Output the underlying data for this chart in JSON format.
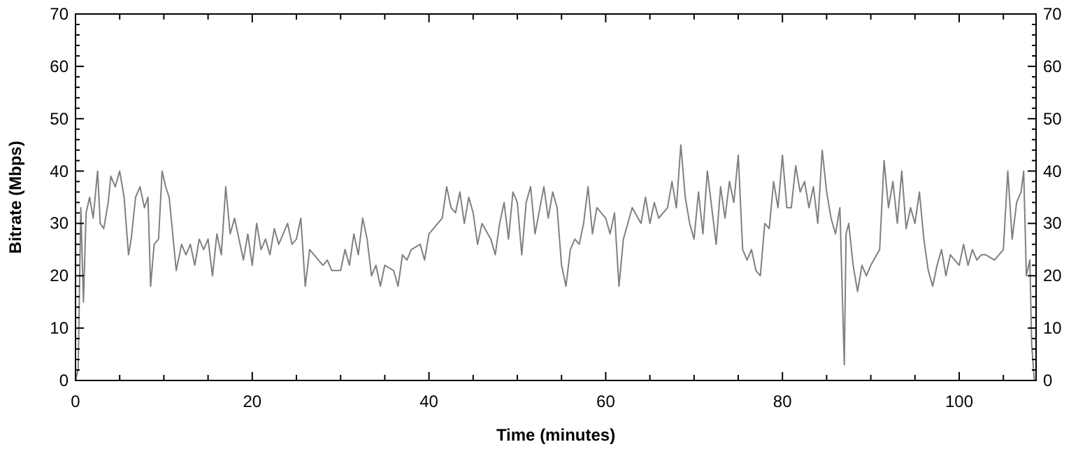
{
  "chart_data": {
    "type": "line",
    "xlabel": "Time (minutes)",
    "ylabel": "Bitrate (Mbps)",
    "xlim": [
      0,
      108.7
    ],
    "ylim": [
      0,
      70
    ],
    "xticks": [
      0,
      {
        "value": 5,
        "label": null
      },
      20,
      {
        "value": 10,
        "label": null
      },
      {
        "value": 15,
        "label": null
      },
      {
        "value": 25,
        "label": null
      },
      {
        "value": 30,
        "label": null
      },
      {
        "value": 35,
        "label": null
      },
      40,
      {
        "value": 45,
        "label": null
      },
      {
        "value": 50,
        "label": null
      },
      {
        "value": 55,
        "label": null
      },
      60,
      {
        "value": 65,
        "label": null
      },
      {
        "value": 70,
        "label": null
      },
      {
        "value": 75,
        "label": null
      },
      80,
      {
        "value": 85,
        "label": null
      },
      {
        "value": 90,
        "label": null
      },
      {
        "value": 95,
        "label": null
      },
      100,
      {
        "value": 105,
        "label": null
      }
    ],
    "yticks": [
      0,
      {
        "value": 2,
        "label": null
      },
      {
        "value": 4,
        "label": null
      },
      {
        "value": 6,
        "label": null
      },
      {
        "value": 8,
        "label": null
      },
      10,
      {
        "value": 12,
        "label": null
      },
      {
        "value": 14,
        "label": null
      },
      {
        "value": 16,
        "label": null
      },
      {
        "value": 18,
        "label": null
      },
      20,
      {
        "value": 22,
        "label": null
      },
      {
        "value": 24,
        "label": null
      },
      {
        "value": 26,
        "label": null
      },
      {
        "value": 28,
        "label": null
      },
      30,
      {
        "value": 32,
        "label": null
      },
      {
        "value": 34,
        "label": null
      },
      {
        "value": 36,
        "label": null
      },
      {
        "value": 38,
        "label": null
      },
      40,
      {
        "value": 42,
        "label": null
      },
      {
        "value": 44,
        "label": null
      },
      {
        "value": 46,
        "label": null
      },
      {
        "value": 48,
        "label": null
      },
      50,
      {
        "value": 52,
        "label": null
      },
      {
        "value": 54,
        "label": null
      },
      {
        "value": 56,
        "label": null
      },
      {
        "value": 58,
        "label": null
      },
      60,
      {
        "value": 62,
        "label": null
      },
      {
        "value": 64,
        "label": null
      },
      {
        "value": 66,
        "label": null
      },
      {
        "value": 68,
        "label": null
      },
      70
    ],
    "y2lim": [
      0,
      70
    ],
    "y2ticks": [
      0,
      10,
      20,
      30,
      40,
      50,
      60,
      70
    ],
    "grid": false,
    "marker": "none",
    "line_style": "solid",
    "series": [
      {
        "color": "#808080",
        "x": [
          0,
          0.3,
          0.6,
          0.9,
          1.2,
          1.6,
          2,
          2.5,
          2.8,
          3.2,
          3.7,
          4,
          4.5,
          5,
          5.5,
          6,
          6.3,
          6.8,
          7.3,
          7.8,
          8.2,
          8.5,
          8.9,
          9.4,
          9.8,
          10.2,
          10.6,
          11,
          11.4,
          12,
          12.5,
          13,
          13.5,
          14,
          14.5,
          15,
          15.5,
          16,
          16.5,
          17,
          17.5,
          18,
          18.5,
          19,
          19.5,
          20,
          20.5,
          21,
          21.5,
          22,
          22.5,
          23,
          23.5,
          24,
          24.5,
          25,
          25.5,
          26,
          26.5,
          27,
          28,
          28.5,
          29,
          30,
          30.5,
          31,
          31.5,
          32,
          32.5,
          33,
          33.5,
          34,
          34.5,
          35,
          36,
          36.5,
          37,
          37.5,
          38,
          39,
          39.5,
          40,
          41,
          41.5,
          42,
          42.5,
          43,
          43.5,
          44,
          44.5,
          45,
          45.5,
          46,
          47,
          47.5,
          48,
          48.5,
          49,
          49.5,
          50,
          50.5,
          51,
          51.5,
          52,
          53,
          53.5,
          54,
          54.5,
          55,
          55.5,
          56,
          56.5,
          57,
          57.5,
          58,
          58.5,
          59,
          60,
          60.5,
          61,
          61.5,
          62,
          62.5,
          63,
          64,
          64.5,
          65,
          65.5,
          66,
          67,
          67.5,
          68,
          68.5,
          69,
          69.5,
          70,
          70.5,
          71,
          71.5,
          72,
          72.5,
          73,
          73.5,
          74,
          74.5,
          75,
          75.5,
          76,
          76.5,
          77,
          77.5,
          78,
          78.5,
          79,
          79.5,
          80,
          80.5,
          81,
          81.5,
          82,
          82.5,
          83,
          83.5,
          84,
          84.5,
          85,
          85.5,
          86,
          86.5,
          87,
          87.2,
          87.5,
          88,
          88.5,
          89,
          89.5,
          90,
          91,
          91.5,
          92,
          92.5,
          93,
          93.5,
          94,
          94.5,
          95,
          95.5,
          96,
          96.5,
          97,
          97.5,
          98,
          98.5,
          99,
          100,
          100.5,
          101,
          101.5,
          102,
          102.5,
          103,
          104,
          105,
          105.5,
          106,
          106.5,
          107,
          107.3,
          107.6,
          108,
          108.2,
          108.5
        ],
        "values": [
          0,
          2,
          33,
          15,
          32,
          35,
          31,
          40,
          30,
          29,
          34,
          39,
          37,
          40,
          35,
          24,
          27,
          35,
          37,
          33,
          35,
          18,
          26,
          27,
          40,
          37,
          35,
          28,
          21,
          26,
          24,
          26,
          22,
          27,
          25,
          27,
          20,
          28,
          24,
          37,
          28,
          31,
          27,
          23,
          28,
          22,
          30,
          25,
          27,
          24,
          29,
          26,
          28,
          30,
          26,
          27,
          31,
          18,
          25,
          24,
          22,
          23,
          21,
          21,
          25,
          22,
          28,
          24,
          31,
          27,
          20,
          22,
          18,
          22,
          21,
          18,
          24,
          23,
          25,
          26,
          23,
          28,
          30,
          31,
          37,
          33,
          32,
          36,
          30,
          35,
          32,
          26,
          30,
          27,
          24,
          30,
          34,
          27,
          36,
          34,
          24,
          34,
          37,
          28,
          37,
          31,
          36,
          33,
          22,
          18,
          25,
          27,
          26,
          30,
          37,
          28,
          33,
          31,
          28,
          32,
          18,
          27,
          30,
          33,
          30,
          35,
          30,
          34,
          31,
          33,
          38,
          33,
          45,
          35,
          30,
          27,
          36,
          28,
          40,
          33,
          26,
          37,
          31,
          38,
          34,
          43,
          25,
          23,
          25,
          21,
          20,
          30,
          29,
          38,
          33,
          43,
          33,
          33,
          41,
          36,
          38,
          33,
          37,
          30,
          44,
          36,
          31,
          28,
          33,
          3,
          28,
          30,
          22,
          17,
          22,
          20,
          22,
          25,
          42,
          33,
          38,
          30,
          40,
          29,
          33,
          30,
          36,
          27,
          21,
          18,
          22,
          25,
          20,
          24,
          22,
          26,
          22,
          25,
          23,
          24,
          24,
          23,
          25,
          40,
          27,
          34,
          36,
          40,
          20,
          23,
          7,
          0
        ]
      }
    ]
  }
}
